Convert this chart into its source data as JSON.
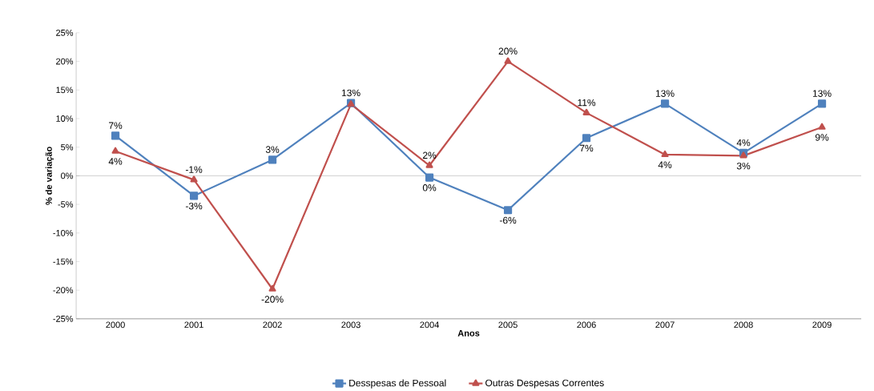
{
  "chart_data": {
    "type": "line",
    "xlabel": "Anos",
    "ylabel": "% de variação",
    "categories": [
      "2000",
      "2001",
      "2002",
      "2003",
      "2004",
      "2005",
      "2006",
      "2007",
      "2008",
      "2009"
    ],
    "ylim": [
      -25,
      25
    ],
    "yticks": [
      {
        "value": -25,
        "label": "-25%"
      },
      {
        "value": -20,
        "label": "-20%"
      },
      {
        "value": -15,
        "label": "-15%"
      },
      {
        "value": -10,
        "label": "-10%"
      },
      {
        "value": -5,
        "label": "-5%"
      },
      {
        "value": 0,
        "label": "0%"
      },
      {
        "value": 5,
        "label": "5%"
      },
      {
        "value": 10,
        "label": "10%"
      },
      {
        "value": 15,
        "label": "15%"
      },
      {
        "value": 20,
        "label": "20%"
      },
      {
        "value": 25,
        "label": "25%"
      }
    ],
    "ref_lines": [
      {
        "axis": "y",
        "value": 0,
        "color": "#868686"
      }
    ],
    "legend": "bottom",
    "line_style": "solid",
    "series": [
      {
        "name": "Desspesas de Pessoal",
        "color": "#4f81bd",
        "marker": "square",
        "values": [
          7,
          -3.5,
          2.8,
          12.7,
          -0.3,
          -6,
          6.6,
          12.6,
          4,
          12.6
        ],
        "value_labels": [
          "7%",
          "-3%",
          "3%",
          "13%",
          "0%",
          "-6%",
          "7%",
          "13%",
          "4%",
          "13%"
        ]
      },
      {
        "name": "Outras Despesas Correntes",
        "color": "#c0504d",
        "marker": "triangle",
        "values": [
          4.3,
          -0.7,
          -19.8,
          12.5,
          1.8,
          20,
          11,
          3.7,
          3.5,
          8.5
        ],
        "value_labels": [
          "4%",
          "-1%",
          "-20%",
          null,
          "2%",
          "20%",
          "11%",
          "4%",
          "3%",
          "9%"
        ]
      }
    ]
  }
}
